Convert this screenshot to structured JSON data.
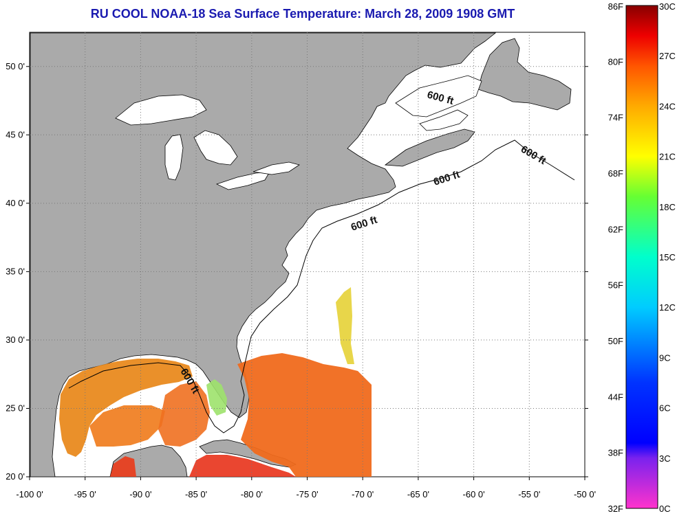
{
  "header": {
    "title": "RU COOL  NOAA-18  Sea Surface Temperature:  March 28, 2009 1908 GMT"
  },
  "axes": {
    "x_ticks": [
      "-100 0'",
      "-95 0'",
      "-90 0'",
      "-85 0'",
      "-80 0'",
      "-75 0'",
      "-70 0'",
      "-65 0'",
      "-60 0'",
      "-55 0'",
      "-50 0'"
    ],
    "x_values": [
      -100,
      -95,
      -90,
      -85,
      -80,
      -75,
      -70,
      -65,
      -60,
      -55,
      -50
    ],
    "y_ticks": [
      "20 0'",
      "25 0'",
      "30 0'",
      "35 0'",
      "40 0'",
      "45 0'",
      "50 0'"
    ],
    "y_values": [
      20,
      25,
      30,
      35,
      40,
      45,
      50
    ],
    "lon_range": [
      -100,
      -50
    ],
    "lat_range": [
      20,
      52.5
    ]
  },
  "contours": {
    "labels": [
      "600 ft",
      "600 ft",
      "600 ft",
      "600 ft",
      "600 ft"
    ]
  },
  "colorbar": {
    "f_labels": [
      "86F",
      "80F",
      "74F",
      "68F",
      "62F",
      "56F",
      "50F",
      "44F",
      "38F",
      "32F"
    ],
    "c_labels": [
      "30C",
      "27C",
      "24C",
      "21C",
      "18C",
      "15C",
      "12C",
      "9C",
      "6C",
      "3C",
      "0C"
    ],
    "c_range": [
      0,
      30
    ]
  },
  "colors": {
    "land": "#aaaaaa",
    "ocean": "#ffffff",
    "title": "#1a1ab0",
    "grid": "#777777"
  }
}
